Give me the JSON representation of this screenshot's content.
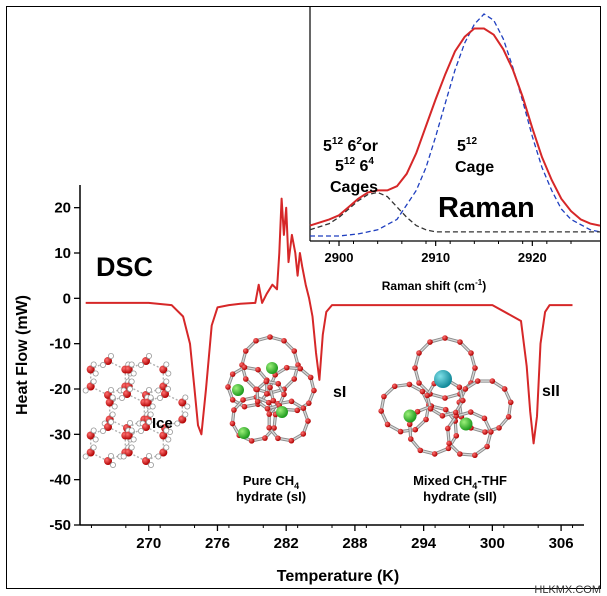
{
  "chart_data": [
    {
      "type": "line",
      "panel": "main",
      "xlabel": "Temperature (K)",
      "ylabel": "Heat Flow (mW)",
      "xlim": [
        264,
        308
      ],
      "ylim": [
        -50,
        25
      ],
      "xticks": [
        270,
        276,
        282,
        288,
        294,
        300,
        306
      ],
      "yticks": [
        20,
        10,
        0,
        -10,
        -20,
        -30,
        -40,
        -50
      ],
      "series_color": "#d62728",
      "annotations": {
        "dsc": "DSC",
        "ice": "Ice",
        "si": "sI",
        "sii": "sII",
        "pure_line1": "Pure CH",
        "pure_sub": "4",
        "pure_line2": "hydrate (sI)",
        "mixed_line1a": "Mixed CH",
        "mixed_sub": "4",
        "mixed_line1b": "-THF",
        "mixed_line2": "hydrate (sII)"
      },
      "series": [
        {
          "x": [
            264.5,
            270,
            272,
            273,
            273.6,
            274,
            274.3,
            274.6,
            275.0,
            275.5,
            276,
            277,
            278,
            279.3,
            279.6,
            279.9,
            280.3,
            280.8,
            281.2,
            281.4,
            281.6,
            281.8,
            282.0,
            282.2,
            282.5,
            282.8,
            283.0,
            283.2,
            283.4,
            283.7,
            284.0,
            284.3,
            284.6,
            284.9,
            285.2,
            285.5,
            286,
            288,
            294,
            300,
            302.5,
            303.0,
            303.3,
            303.6,
            303.9,
            304.2,
            304.6,
            305,
            307
          ],
          "y": [
            -1,
            -1,
            -1.5,
            -4,
            -10,
            -20,
            -28,
            -30,
            -20,
            -6,
            -2,
            -1.5,
            -1.2,
            -1.0,
            3,
            -1,
            1,
            3,
            2,
            10,
            22,
            14,
            20,
            8,
            14,
            10,
            5,
            10,
            7,
            3,
            0,
            -4,
            -12,
            -18,
            -8,
            -3,
            -1.5,
            -1.5,
            -1.5,
            -1.5,
            -5,
            -15,
            -25,
            -32,
            -26,
            -10,
            -3,
            -1.5,
            -1.5
          ]
        }
      ]
    },
    {
      "type": "line",
      "panel": "inset",
      "title": "Raman",
      "xlabel_main": "Raman shift (cm",
      "xlabel_sup": "-1",
      "xlabel_end": ")",
      "xlim": [
        2897,
        2927
      ],
      "xticks": [
        2900,
        2910,
        2920
      ],
      "annotations": {
        "cages_left_1a": "5",
        "cages_left_1a_sup": "12",
        "cages_left_1b": " 6",
        "cages_left_1b_sup": "2",
        "cages_left_1c": "or",
        "cages_left_2a": "5",
        "cages_left_2a_sup": "12",
        "cages_left_2b": " 6",
        "cages_left_2b_sup": "4",
        "cages_left_3": "Cages",
        "cage_right_1": "5",
        "cage_right_1_sup": "12",
        "cage_right_2": "Cage"
      },
      "series": [
        {
          "style": "solid",
          "color": "#d62728",
          "x": [
            2897,
            2899,
            2900,
            2901,
            2902,
            2903,
            2904,
            2905,
            2906,
            2907,
            2908,
            2909,
            2910,
            2911,
            2912,
            2913,
            2914,
            2915,
            2916,
            2917,
            2918,
            2919,
            2920,
            2921,
            2922,
            2923,
            2924,
            2925,
            2926,
            2927
          ],
          "y": [
            0.05,
            0.08,
            0.1,
            0.14,
            0.18,
            0.21,
            0.22,
            0.22,
            0.24,
            0.3,
            0.4,
            0.53,
            0.66,
            0.78,
            0.89,
            0.96,
            1.0,
            1.0,
            0.97,
            0.9,
            0.8,
            0.67,
            0.52,
            0.38,
            0.27,
            0.18,
            0.12,
            0.08,
            0.06,
            0.05
          ]
        },
        {
          "style": "dashed",
          "color": "#1f3fbf",
          "x": [
            2897,
            2900,
            2902,
            2904,
            2906,
            2908,
            2909,
            2910,
            2911,
            2912,
            2913,
            2914,
            2915,
            2916,
            2917,
            2918,
            2919,
            2920,
            2921,
            2922,
            2923,
            2924,
            2926,
            2927
          ],
          "y": [
            0.0,
            0.0,
            0.01,
            0.03,
            0.08,
            0.22,
            0.33,
            0.48,
            0.64,
            0.8,
            0.93,
            1.02,
            1.07,
            1.04,
            0.95,
            0.81,
            0.65,
            0.48,
            0.33,
            0.22,
            0.13,
            0.08,
            0.03,
            0.02
          ]
        },
        {
          "style": "dashed",
          "color": "#333333",
          "x": [
            2897,
            2899,
            2900,
            2901,
            2902,
            2903,
            2904,
            2905,
            2906,
            2907,
            2908,
            2909,
            2910,
            2912,
            2915,
            2920,
            2927
          ],
          "y": [
            0.03,
            0.06,
            0.09,
            0.13,
            0.17,
            0.2,
            0.21,
            0.19,
            0.14,
            0.09,
            0.05,
            0.03,
            0.02,
            0.02,
            0.02,
            0.02,
            0.02
          ]
        }
      ]
    }
  ],
  "watermark": "HLKMX.COM"
}
